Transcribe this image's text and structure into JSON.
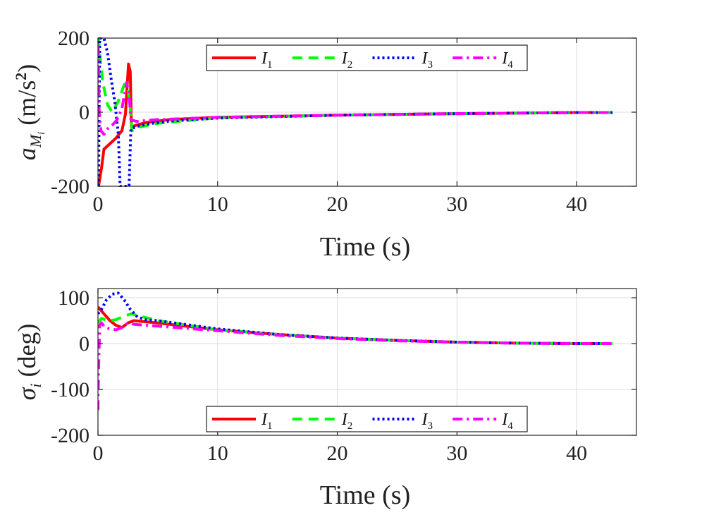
{
  "chart_data": [
    {
      "type": "line",
      "title": "",
      "xlabel": "Time (s)",
      "ylabel": "a_{M_i} (m/s^2)",
      "ylabel_parts": {
        "main": "a",
        "sub": "M",
        "subsub": "i",
        "units": "(m/s",
        "units_sup": "2",
        "units_close": ")"
      },
      "xlim": [
        0,
        45
      ],
      "ylim": [
        -200,
        200
      ],
      "xticks": [
        0,
        10,
        20,
        30,
        40
      ],
      "yticks": [
        -200,
        0,
        200
      ],
      "xtick_labels": [
        "0",
        "10",
        "20",
        "30",
        "40"
      ],
      "ytick_labels": [
        "-200",
        "0",
        "200"
      ],
      "grid": true,
      "legend": {
        "placement": "top-center",
        "entries": [
          "I1",
          "I2",
          "I3",
          "I4"
        ]
      },
      "series": [
        {
          "name": "I1",
          "label_main": "I",
          "label_sub": "1",
          "color": "#ff0000",
          "dash": "solid",
          "x": [
            0.05,
            0.3,
            0.5,
            1,
            1.5,
            2,
            2.3,
            2.55,
            2.7,
            2.8,
            3.2,
            4,
            6,
            10,
            20,
            30,
            40,
            43
          ],
          "y": [
            -200,
            -150,
            -100,
            -85,
            -70,
            -50,
            -5,
            130,
            110,
            -40,
            -35,
            -28,
            -20,
            -14,
            -8,
            -4,
            -1,
            -1
          ]
        },
        {
          "name": "I2",
          "label_main": "I",
          "label_sub": "2",
          "color": "#00ff00",
          "dash": "dashed",
          "x": [
            0.05,
            0.2,
            0.4,
            0.8,
            1.2,
            1.7,
            2.2,
            2.5,
            2.7,
            2.85,
            3.5,
            5,
            10,
            20,
            30,
            40,
            43
          ],
          "y": [
            200,
            140,
            80,
            20,
            0,
            30,
            75,
            65,
            10,
            -50,
            -40,
            -30,
            -15,
            -8,
            -4,
            -1,
            -1
          ]
        },
        {
          "name": "I3",
          "label_main": "I",
          "label_sub": "3",
          "color": "#0000ff",
          "dash": "dotted",
          "x": [
            0.05,
            0.15,
            0.3,
            0.5,
            0.8,
            1.1,
            1.4,
            1.7,
            1.85,
            2.6,
            2.75,
            3.3,
            4.5,
            6,
            10,
            20,
            30,
            40,
            43
          ],
          "y": [
            -200,
            200,
            200,
            200,
            160,
            90,
            30,
            -60,
            -200,
            -200,
            -45,
            -38,
            -30,
            -24,
            -16,
            -8,
            -4,
            -1,
            -1
          ]
        },
        {
          "name": "I4",
          "label_main": "I",
          "label_sub": "4",
          "color": "#ff00ff",
          "dash": "dashdot",
          "x": [
            0.02,
            0.1,
            0.25,
            0.5,
            0.8,
            1.2,
            1.6,
            2.0,
            2.4,
            2.6,
            2.75,
            3.2,
            5,
            10,
            20,
            30,
            40,
            43
          ],
          "y": [
            180,
            0,
            -50,
            -60,
            -45,
            -35,
            -20,
            10,
            80,
            50,
            -20,
            -25,
            -20,
            -14,
            -8,
            -4,
            -1,
            -1
          ]
        }
      ]
    },
    {
      "type": "line",
      "title": "",
      "xlabel": "Time (s)",
      "ylabel": "σ_i (deg)",
      "ylabel_parts": {
        "main": "σ",
        "sub": "i",
        "units": "(deg)"
      },
      "xlim": [
        0,
        45
      ],
      "ylim": [
        -200,
        120
      ],
      "xticks": [
        0,
        10,
        20,
        30,
        40
      ],
      "yticks": [
        -200,
        -100,
        0,
        100
      ],
      "xtick_labels": [
        "0",
        "10",
        "20",
        "30",
        "40"
      ],
      "ytick_labels": [
        "-200",
        "-100",
        "0",
        "100"
      ],
      "grid": true,
      "legend": {
        "placement": "bottom-center",
        "entries": [
          "I1",
          "I2",
          "I3",
          "I4"
        ]
      },
      "series": [
        {
          "name": "I1",
          "label_main": "I",
          "label_sub": "1",
          "color": "#ff0000",
          "dash": "solid",
          "x": [
            0,
            0.5,
            1,
            1.5,
            2,
            2.5,
            3,
            5,
            10,
            15,
            20,
            25,
            30,
            35,
            40,
            43
          ],
          "y": [
            80,
            65,
            50,
            40,
            35,
            45,
            50,
            45,
            30,
            20,
            12,
            7,
            3,
            1,
            0,
            0
          ]
        },
        {
          "name": "I2",
          "label_main": "I",
          "label_sub": "2",
          "color": "#00ff00",
          "dash": "dashed",
          "x": [
            0,
            0.3,
            0.8,
            1.5,
            2.2,
            2.8,
            3.5,
            5,
            10,
            15,
            20,
            25,
            30,
            35,
            40,
            43
          ],
          "y": [
            45,
            55,
            50,
            52,
            60,
            65,
            60,
            50,
            30,
            20,
            12,
            7,
            3,
            1,
            0,
            0
          ]
        },
        {
          "name": "I3",
          "label_main": "I",
          "label_sub": "3",
          "color": "#0000ff",
          "dash": "dotted",
          "x": [
            0,
            0.3,
            0.7,
            1.2,
            1.7,
            2.2,
            2.7,
            3.3,
            4,
            5,
            10,
            15,
            20,
            25,
            30,
            35,
            40,
            43
          ],
          "y": [
            65,
            75,
            95,
            108,
            110,
            95,
            75,
            58,
            52,
            50,
            32,
            20,
            12,
            7,
            3,
            1,
            0,
            0
          ]
        },
        {
          "name": "I4",
          "label_main": "I",
          "label_sub": "4",
          "color": "#ff00ff",
          "dash": "dashdot",
          "x": [
            0,
            0.05,
            0.15,
            0.3,
            0.6,
            1,
            1.5,
            2,
            2.5,
            3,
            5,
            10,
            15,
            20,
            25,
            30,
            35,
            40,
            43
          ],
          "y": [
            -145,
            -60,
            40,
            45,
            35,
            32,
            30,
            35,
            45,
            42,
            38,
            28,
            18,
            11,
            6,
            3,
            1,
            0,
            0
          ]
        }
      ]
    }
  ]
}
